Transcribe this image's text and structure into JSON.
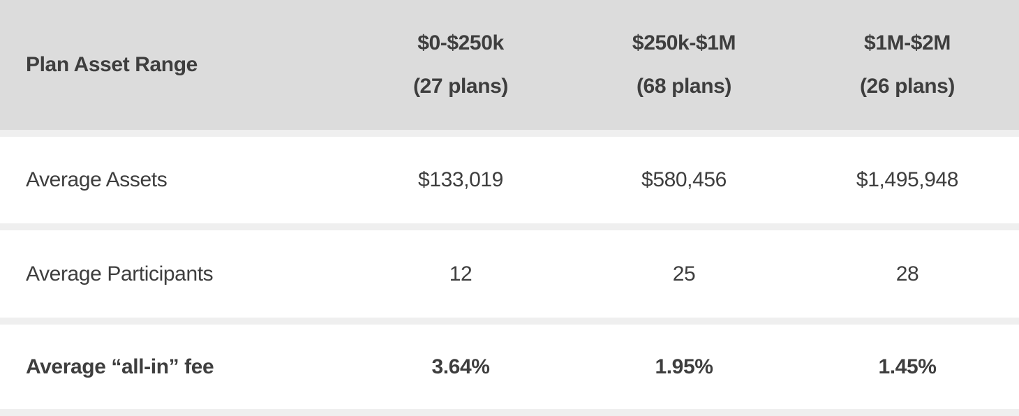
{
  "table": {
    "corner_label": "Plan Asset Range",
    "column_headers": [
      {
        "range": "$0-$250k",
        "plans": "(27 plans)"
      },
      {
        "range": "$250k-$1M",
        "plans": "(68 plans)"
      },
      {
        "range": "$1M-$2M",
        "plans": "(26 plans)"
      }
    ],
    "rows": [
      {
        "label": "Average Assets",
        "values": [
          "$133,019",
          "$580,456",
          "$1,495,948"
        ]
      },
      {
        "label": "Average Participants",
        "values": [
          "12",
          "25",
          "28"
        ]
      },
      {
        "label": "Average “all-in” fee",
        "values": [
          "3.64%",
          "1.95%",
          "1.45%"
        ]
      }
    ]
  },
  "colors": {
    "header_bg": "#dcdcdc",
    "row_bg": "#ffffff",
    "separator": "#efefef",
    "text": "#3e3e3e"
  },
  "chart_data": {
    "type": "table",
    "columns": [
      "Plan Asset Range",
      "$0-$250k (27 plans)",
      "$250k-$1M (68 plans)",
      "$1M-$2M (26 plans)"
    ],
    "rows": [
      [
        "Average Assets",
        "$133,019",
        "$580,456",
        "$1,495,948"
      ],
      [
        "Average Participants",
        12,
        25,
        28
      ],
      [
        "Average “all-in” fee",
        "3.64%",
        "1.95%",
        "1.45%"
      ]
    ]
  }
}
